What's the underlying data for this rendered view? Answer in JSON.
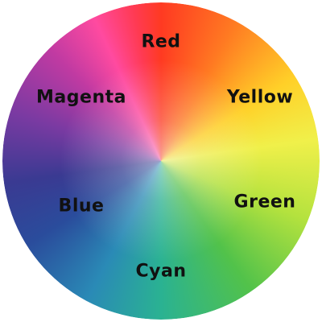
{
  "wheel": {
    "labels": {
      "red": "Red",
      "yellow": "Yellow",
      "green": "Green",
      "cyan": "Cyan",
      "blue": "Blue",
      "magenta": "Magenta"
    },
    "colors": {
      "red": "#ff3a22",
      "yellow": "#f0f04a",
      "green": "#52c24a",
      "cyan": "#2ab292",
      "blue": "#2a4c9c",
      "magenta": "#c03aa2"
    }
  }
}
